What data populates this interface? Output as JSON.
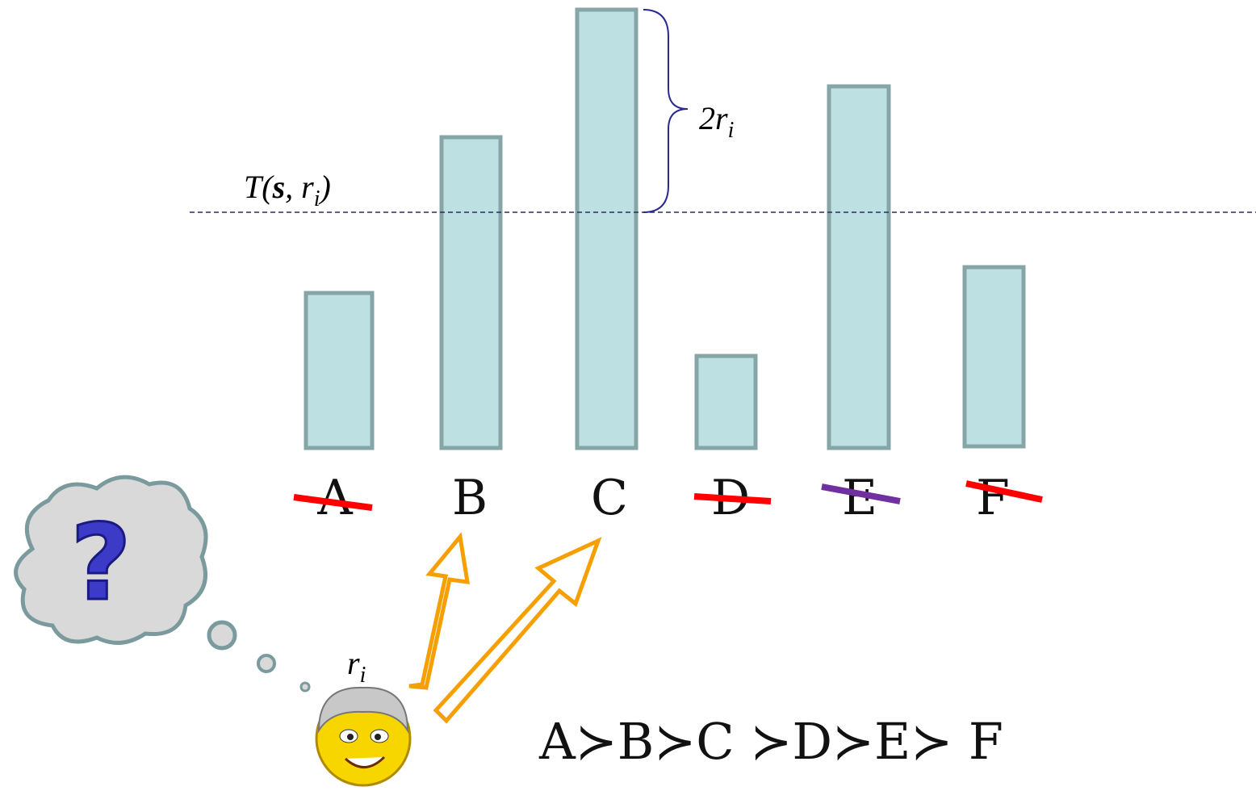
{
  "threshold": {
    "parts": [
      "T(",
      "s",
      ", r",
      "i",
      ")"
    ]
  },
  "brace": {
    "parts": [
      "2r",
      "i"
    ]
  },
  "options": [
    "A",
    "B",
    "C",
    "D",
    "E",
    "F"
  ],
  "voter": {
    "parts": [
      "r",
      "i"
    ]
  },
  "question": "?",
  "ranking": "A≻B≻C ≻D≻E≻ F"
}
